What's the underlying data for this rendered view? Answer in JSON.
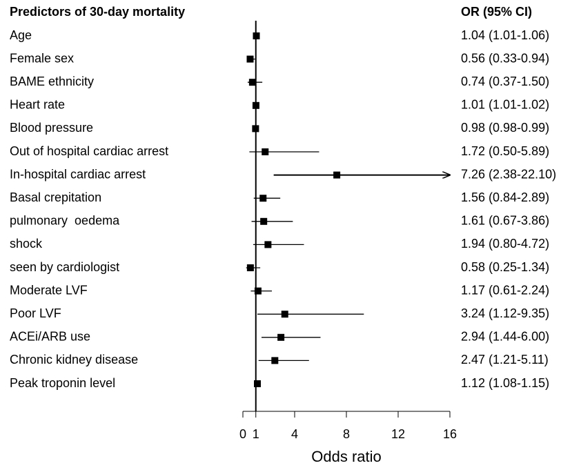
{
  "chart_data": {
    "type": "forest",
    "title": "Predictors of 30-day mortality",
    "column_header": "OR (95% CI)",
    "x_label": "Odds ratio",
    "categories": [
      "Age",
      "Female sex",
      "BAME ethnicity",
      "Heart rate",
      "Blood pressure",
      "Out of hospital cardiac arrest",
      "In-hospital cardiac arrest",
      "Basal crepitation",
      "pulmonary  oedema",
      "shock",
      "seen by cardiologist",
      "Moderate LVF",
      "Poor LVF",
      "ACEi/ARB use",
      "Chronic kidney disease",
      "Peak troponin level"
    ],
    "values": [
      1.04,
      0.56,
      0.74,
      1.01,
      0.98,
      1.72,
      7.26,
      1.56,
      1.61,
      1.94,
      0.58,
      1.17,
      3.24,
      2.94,
      2.47,
      1.12
    ],
    "lower": [
      1.01,
      0.33,
      0.37,
      1.01,
      0.98,
      0.5,
      2.38,
      0.84,
      0.67,
      0.8,
      0.25,
      0.61,
      1.12,
      1.44,
      1.21,
      1.08
    ],
    "upper": [
      1.06,
      0.94,
      1.5,
      1.02,
      0.99,
      5.89,
      22.1,
      2.89,
      3.86,
      4.72,
      1.34,
      2.24,
      9.35,
      6.0,
      5.11,
      1.15
    ],
    "value_labels": [
      "1.04 (1.01-1.06)",
      "0.56 (0.33-0.94)",
      "0.74 (0.37-1.50)",
      "1.01 (1.01-1.02)",
      "0.98 (0.98-0.99)",
      "1.72 (0.50-5.89)",
      "7.26 (2.38-22.10)",
      "1.56 (0.84-2.89)",
      "1.61 (0.67-3.86)",
      "1.94 (0.80-4.72)",
      "0.58 (0.25-1.34)",
      "1.17 (0.61-2.24)",
      "3.24 (1.12-9.35)",
      "2.94 (1.44-6.00)",
      "2.47 (1.21-5.11)",
      "1.12 (1.08-1.15)"
    ],
    "xlim": [
      0,
      16
    ],
    "xticks": [
      0,
      1,
      4,
      8,
      12,
      16
    ],
    "reference_line": 1,
    "color": "#000000"
  }
}
